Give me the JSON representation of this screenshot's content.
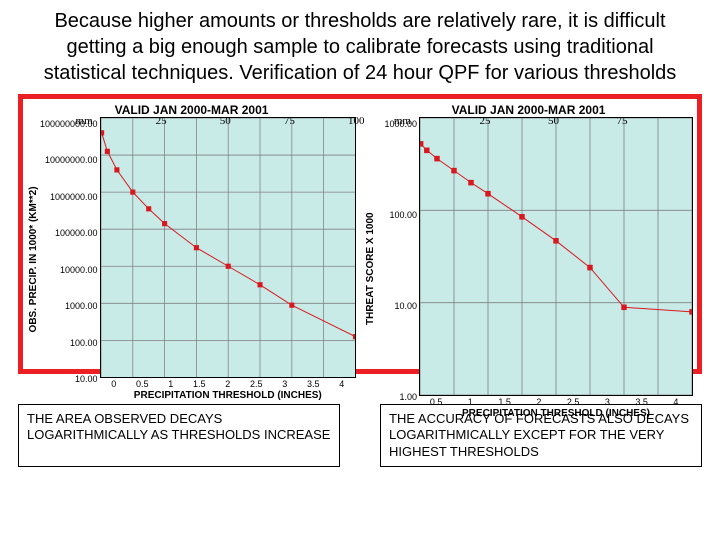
{
  "title_line": "Because higher amounts or thresholds are relatively rare, it is difficult getting a big enough sample to calibrate forecasts using traditional statistical techniques. Verification of 24 hour QPF for various thresholds",
  "frame_border_color": "#ec2024",
  "left_chart": {
    "title": "VALID JAN 2000-MAR 2001",
    "ylabel": "OBS. PRECIP. IN 1000* (KM**2)",
    "xlabel": "PRECIPITATION THRESHOLD (INCHES)",
    "xticks": [
      "0",
      "0.5",
      "1",
      "1.5",
      "2",
      "2.5",
      "3",
      "3.5",
      "4"
    ],
    "yticks_labels": [
      "100000000.00",
      "10000000.00",
      "1000000.00",
      "100000.00",
      "10000.00",
      "1000.00",
      "100.00",
      "10.00"
    ],
    "ylim_log10": [
      1,
      8
    ],
    "xlim": [
      0,
      4
    ],
    "background_color": "#c8ebe8",
    "grid_color": "#808080",
    "line_color": "#d8181e",
    "marker_color": "#d8181e",
    "marker_size": 4,
    "line_width": 2,
    "title_color": "#000000",
    "tick_color": "#000000",
    "data_points": [
      {
        "x": 0.01,
        "y_log10": 7.6
      },
      {
        "x": 0.1,
        "y_log10": 7.1
      },
      {
        "x": 0.25,
        "y_log10": 6.6
      },
      {
        "x": 0.5,
        "y_log10": 6.0
      },
      {
        "x": 0.75,
        "y_log10": 5.55
      },
      {
        "x": 1.0,
        "y_log10": 5.15
      },
      {
        "x": 1.5,
        "y_log10": 4.5
      },
      {
        "x": 2.0,
        "y_log10": 4.0
      },
      {
        "x": 2.5,
        "y_log10": 3.5
      },
      {
        "x": 3.0,
        "y_log10": 2.95
      },
      {
        "x": 4.0,
        "y_log10": 2.1
      }
    ],
    "mm_labels": [
      "mm",
      "25",
      "50",
      "75",
      "100"
    ]
  },
  "right_chart": {
    "title": "VALID JAN 2000-MAR 2001",
    "ylabel": "THREAT SCORE X 1000",
    "xlabel": "PRECIPITATION THRESHOLD (INCHES)",
    "xticks": [
      "0.5",
      "1",
      "1.5",
      "2",
      "2.5",
      "3",
      "3.5",
      "4"
    ],
    "yticks_labels": [
      "1000.00",
      "100.00",
      "10.00",
      "1.00"
    ],
    "ylim_log10": [
      0,
      3
    ],
    "xlim": [
      0,
      4
    ],
    "background_color": "#c8ebe8",
    "grid_color": "#808080",
    "line_color": "#d8181e",
    "marker_color": "#d8181e",
    "marker_size": 4,
    "line_width": 2,
    "title_color": "#000000",
    "tick_color": "#000000",
    "data_points": [
      {
        "x": 0.01,
        "y_log10": 2.72
      },
      {
        "x": 0.1,
        "y_log10": 2.65
      },
      {
        "x": 0.25,
        "y_log10": 2.56
      },
      {
        "x": 0.5,
        "y_log10": 2.43
      },
      {
        "x": 0.75,
        "y_log10": 2.3
      },
      {
        "x": 1.0,
        "y_log10": 2.18
      },
      {
        "x": 1.5,
        "y_log10": 1.93
      },
      {
        "x": 2.0,
        "y_log10": 1.67
      },
      {
        "x": 2.5,
        "y_log10": 1.38
      },
      {
        "x": 3.0,
        "y_log10": 0.95
      },
      {
        "x": 4.0,
        "y_log10": 0.9
      }
    ],
    "mm_labels": [
      "mm",
      "25",
      "50",
      "75"
    ]
  },
  "caption_left": "THE AREA OBSERVED DECAYS LOGARITHMICALLY AS THRESHOLDS INCREASE",
  "caption_right": "THE ACCURACY OF FORECASTS ALSO DECAYS LOGARITHMICALLY EXCEPT FOR THE VERY HIGHEST THRESHOLDS"
}
